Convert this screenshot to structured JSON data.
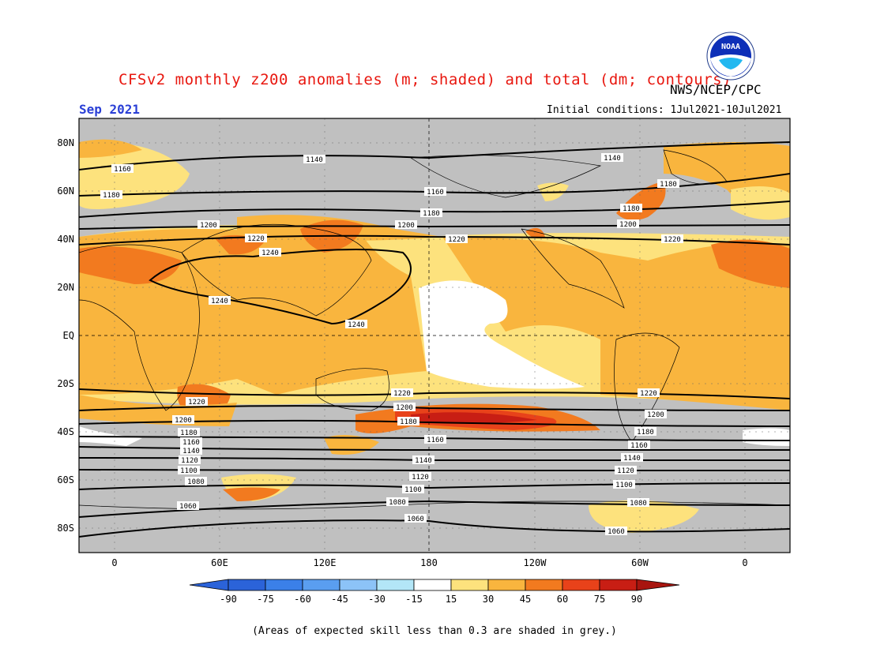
{
  "header": {
    "title": "CFSv2 monthly z200 anomalies (m; shaded) and total (dm; contours)",
    "org": "NWS/NCEP/CPC",
    "month": "Sep 2021",
    "initial_conditions": "Initial conditions: 1Jul2021-10Jul2021",
    "logo_text": "NOAA"
  },
  "map": {
    "lat_labels": [
      "80N",
      "60N",
      "40N",
      "20N",
      "EQ",
      "20S",
      "40S",
      "60S",
      "80S"
    ],
    "lon_labels": [
      "0",
      "60E",
      "120E",
      "180",
      "120W",
      "60W",
      "0"
    ],
    "colors": {
      "grey": "#c0c0c0",
      "c15_30": "#fde27d",
      "c30_45": "#f9b53e",
      "c45_60": "#f27a1f",
      "c60_75": "#e8421a",
      "c75_90": "#c81e14",
      "white": "#ffffff",
      "contour": "#000000"
    },
    "contour_labels": [
      "1140",
      "1160",
      "1180",
      "1200",
      "1220",
      "1240",
      "1120",
      "1100",
      "1080",
      "1060"
    ]
  },
  "colorbar": {
    "ticks": [
      "-90",
      "-75",
      "-60",
      "-45",
      "-30",
      "-15",
      "15",
      "30",
      "45",
      "60",
      "75",
      "90"
    ],
    "colors": [
      "#2b63d9",
      "#3b80e8",
      "#5a9ef0",
      "#8cc3f7",
      "#b3e6f7",
      "#ffffff",
      "#fde27d",
      "#f9b53e",
      "#f27a1f",
      "#e8421a",
      "#c81e14"
    ]
  },
  "footer": "(Areas of expected skill less than 0.3 are shaded in grey.)"
}
